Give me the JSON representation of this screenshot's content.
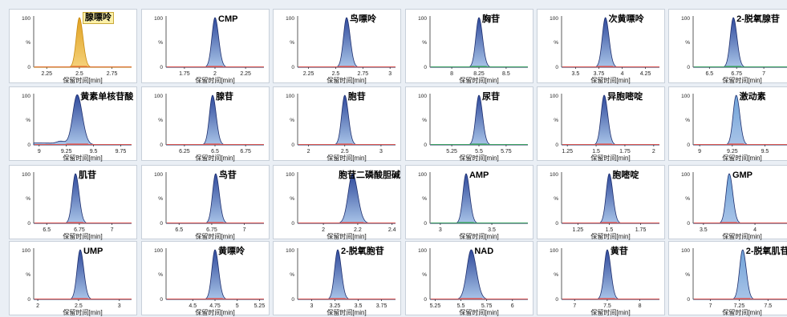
{
  "axis": {
    "xlabel": "保留时间[min]",
    "y_top": "100",
    "y_mid": "%",
    "y_bottom": "0"
  },
  "colors": {
    "peak_fill_start": "#2f4a9c",
    "peak_fill_end": "#a9c4e8",
    "baseline_default": "#d9534f",
    "highlight_bg": "#fbf0a8"
  },
  "chart_data": [
    {
      "type": "line",
      "title": "腺嘌呤",
      "highlight": true,
      "peak_rt": 2.5,
      "xlim": [
        2.15,
        2.9
      ],
      "xticks": [
        2.25,
        2.5,
        2.75
      ],
      "fill": "#e0a020",
      "line": "#c98b10",
      "base": "#e07030"
    },
    {
      "type": "line",
      "title": "CMP",
      "peak_rt": 2.0,
      "xlim": [
        1.6,
        2.4
      ],
      "xticks": [
        1.75,
        2,
        2.25
      ]
    },
    {
      "type": "line",
      "title": "鸟嘌呤",
      "peak_rt": 2.6,
      "xlim": [
        2.15,
        3.05
      ],
      "xticks": [
        2.25,
        2.5,
        2.75,
        3
      ]
    },
    {
      "type": "line",
      "title": "胸苷",
      "peak_rt": 8.25,
      "xlim": [
        7.8,
        8.7
      ],
      "xticks": [
        8,
        8.25,
        8.5
      ],
      "base": "#3aa060"
    },
    {
      "type": "line",
      "title": "次黄嘌呤",
      "peak_rt": 3.82,
      "xlim": [
        3.35,
        4.4
      ],
      "xticks": [
        3.5,
        3.75,
        4,
        4.25
      ]
    },
    {
      "type": "line",
      "title": "2-脱氧腺苷",
      "peak_rt": 6.72,
      "xlim": [
        6.35,
        7.25
      ],
      "xticks": [
        6.5,
        6.75,
        7
      ],
      "yt": "100",
      "base": "#3aa060"
    },
    {
      "type": "line",
      "title": "黄素单核苷酸",
      "peak_rt": 9.35,
      "xlim": [
        8.95,
        9.85
      ],
      "xticks": [
        9,
        9.25,
        9.5,
        9.75
      ],
      "bumps": [
        9.2
      ],
      "wide": true
    },
    {
      "type": "line",
      "title": "腺苷",
      "peak_rt": 6.48,
      "xlim": [
        6.1,
        6.9
      ],
      "xticks": [
        6.25,
        6.5,
        6.75
      ]
    },
    {
      "type": "line",
      "title": "胞苷",
      "peak_rt": 2.5,
      "xlim": [
        1.85,
        3.2
      ],
      "xticks": [
        2,
        2.5,
        3
      ]
    },
    {
      "type": "line",
      "title": "尿苷",
      "peak_rt": 5.5,
      "xlim": [
        5.05,
        5.95
      ],
      "xticks": [
        5.25,
        5.5,
        5.75
      ],
      "base": "#3aa060"
    },
    {
      "type": "line",
      "title": "异胞嘧啶",
      "peak_rt": 1.57,
      "xlim": [
        1.2,
        2.05
      ],
      "xticks": [
        1.25,
        1.5,
        1.75,
        2
      ]
    },
    {
      "type": "line",
      "title": "激动素",
      "peak_rt": 9.28,
      "xlim": [
        8.95,
        9.7
      ],
      "xticks": [
        9,
        9.25,
        9.5
      ],
      "light": true
    },
    {
      "type": "line",
      "title": "肌苷",
      "peak_rt": 6.72,
      "xlim": [
        6.4,
        7.15
      ],
      "xticks": [
        6.5,
        6.75,
        7
      ]
    },
    {
      "type": "line",
      "title": "鸟苷",
      "peak_rt": 6.78,
      "xlim": [
        6.4,
        7.15
      ],
      "xticks": [
        6.5,
        6.75,
        7
      ]
    },
    {
      "type": "line",
      "title": "胞苷二磷酸胆碱",
      "peak_rt": 2.17,
      "xlim": [
        1.85,
        2.42
      ],
      "xticks": [
        2,
        2.2,
        2.4
      ],
      "wide": true
    },
    {
      "type": "line",
      "title": "AMP",
      "peak_rt": 3.25,
      "xlim": [
        2.9,
        3.85
      ],
      "xticks": [
        3,
        3.5
      ],
      "base": "#3aa060",
      "tall": true
    },
    {
      "type": "line",
      "title": "胞嘧啶",
      "peak_rt": 1.5,
      "xlim": [
        1.12,
        1.9
      ],
      "xticks": [
        1.25,
        1.5,
        1.75
      ]
    },
    {
      "type": "line",
      "title": "GMP",
      "peak_rt": 3.75,
      "xlim": [
        3.4,
        4.35
      ],
      "xticks": [
        3.5,
        4
      ],
      "light": true
    },
    {
      "type": "line",
      "title": "UMP",
      "peak_rt": 2.52,
      "xlim": [
        1.95,
        3.15
      ],
      "xticks": [
        2,
        2.5,
        3
      ]
    },
    {
      "type": "line",
      "title": "黄嘌呤",
      "peak_rt": 4.75,
      "xlim": [
        4.2,
        5.3
      ],
      "xticks": [
        4.5,
        4.75,
        5,
        5.25
      ]
    },
    {
      "type": "line",
      "title": "2-脱氧胞苷",
      "peak_rt": 3.28,
      "xlim": [
        2.85,
        3.9
      ],
      "xticks": [
        3,
        3.25,
        3.5,
        3.75
      ]
    },
    {
      "type": "line",
      "title": "NAD",
      "peak_rt": 5.6,
      "xlim": [
        5.2,
        6.15
      ],
      "xticks": [
        5.25,
        5.5,
        5.75,
        6
      ],
      "wide": true
    },
    {
      "type": "line",
      "title": "黄苷",
      "peak_rt": 7.5,
      "xlim": [
        6.8,
        8.3
      ],
      "xticks": [
        7,
        7.5,
        8
      ]
    },
    {
      "type": "line",
      "title": "2-脱氧肌苷",
      "peak_rt": 7.28,
      "xlim": [
        6.85,
        7.7
      ],
      "xticks": [
        7,
        7.25,
        7.5
      ],
      "light": true
    }
  ]
}
